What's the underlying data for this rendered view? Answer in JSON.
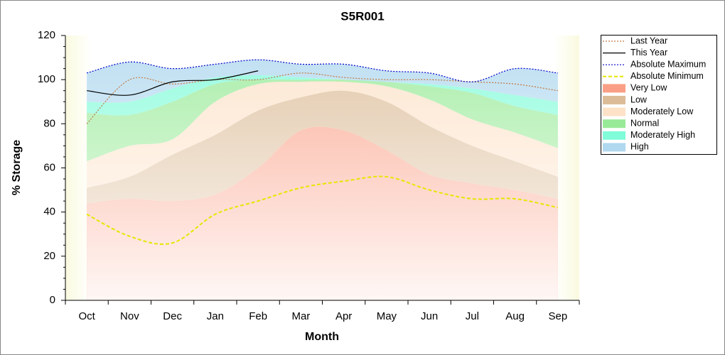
{
  "chart_data": {
    "type": "area-line",
    "title": "S5R001",
    "x_label": "Month",
    "y_label": "% Storage",
    "categories": [
      "Oct",
      "Nov",
      "Dec",
      "Jan",
      "Feb",
      "Mar",
      "Apr",
      "May",
      "Jun",
      "Jul",
      "Aug",
      "Sep"
    ],
    "ylim": [
      0,
      120
    ],
    "yticks": [
      0,
      20,
      40,
      60,
      80,
      100,
      120
    ],
    "series": [
      {
        "name": "Last Year",
        "kind": "line",
        "color": "#c07840",
        "dash": "2,2",
        "values": [
          80,
          100,
          98,
          100,
          100,
          103,
          101,
          100,
          100,
          99,
          98,
          95
        ]
      },
      {
        "name": "This Year",
        "kind": "line",
        "color": "#000000",
        "dash": "none",
        "values": [
          95,
          93,
          99,
          100,
          104,
          null,
          null,
          null,
          null,
          null,
          null,
          null
        ]
      },
      {
        "name": "Absolute Maximum",
        "kind": "line",
        "color": "#0000cc",
        "dash": "2,2",
        "values": [
          103,
          108,
          105,
          107,
          109,
          107,
          107,
          104,
          103,
          99,
          105,
          103
        ]
      },
      {
        "name": "Absolute Minimum",
        "kind": "line",
        "color": "#e6e600",
        "dash": "5,3",
        "values": [
          39,
          29,
          26,
          39,
          45,
          51,
          54,
          56,
          50,
          46,
          46,
          42
        ]
      },
      {
        "name": "Very Low",
        "kind": "band",
        "color": "#fa9f86",
        "values": [
          44,
          46,
          45,
          48,
          60,
          77,
          77,
          68,
          57,
          53,
          50,
          46
        ]
      },
      {
        "name": "Low",
        "kind": "band",
        "color": "#dcbc98",
        "values": [
          51,
          56,
          66,
          75,
          86,
          92,
          95,
          90,
          79,
          70,
          63,
          56
        ]
      },
      {
        "name": "Moderately Low",
        "kind": "band",
        "color": "#fde2c8",
        "values": [
          63,
          70,
          73,
          90,
          98,
          99,
          99,
          97,
          91,
          82,
          76,
          69
        ]
      },
      {
        "name": "Normal",
        "kind": "band",
        "color": "#98ea98",
        "values": [
          85,
          84,
          90,
          98,
          100,
          100,
          100,
          99,
          97,
          94,
          88,
          84
        ]
      },
      {
        "name": "Moderately High",
        "kind": "band",
        "color": "#80fcd8",
        "values": [
          90,
          90,
          96,
          101,
          102,
          101,
          100,
          99,
          98,
          96,
          93,
          90
        ]
      },
      {
        "name": "High",
        "kind": "band",
        "color": "#b0d8ee",
        "values": [
          103,
          108,
          105,
          107,
          109,
          107,
          107,
          104,
          103,
          99,
          105,
          103
        ]
      }
    ]
  }
}
